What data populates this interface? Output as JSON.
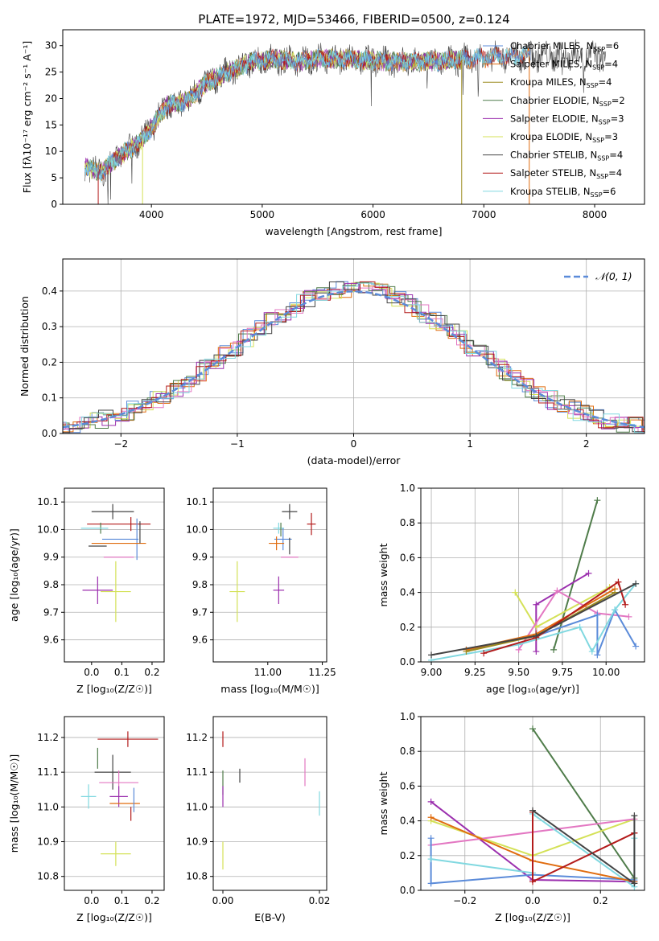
{
  "figure_title": "PLATE=1972, MJD=53466, FIBERID=0500, z=0.124",
  "colors": {
    "chabrier_miles": "#5b8bd9",
    "salpeter_miles": "#e06c0f",
    "kroupa_miles": "#9c8a1e",
    "chabrier_elodie": "#4f7c4a",
    "salpeter_elodie": "#9b2fae",
    "kroupa_elodie": "#d4e157",
    "chabrier_stelib": "#444444",
    "salpeter_stelib": "#b31b1b",
    "kroupa_stelib": "#80d8e0",
    "pink": "#e377c2",
    "gaussian": "#5b8bd9"
  },
  "legend_entries": [
    "Chabrier MILES, N_SSP=6",
    "Salpeter MILES, N_SSP=4",
    "Kroupa MILES, N_SSP=4",
    "Chabrier ELODIE, N_SSP=2",
    "Salpeter ELODIE, N_SSP=3",
    "Kroupa ELODIE, N_SSP=3",
    "Chabrier STELIB, N_SSP=4",
    "Salpeter STELIB, N_SSP=4",
    "Kroupa STELIB, N_SSP=6"
  ],
  "chart_data": [
    {
      "type": "line",
      "panel": "spectrum",
      "xlabel": "wavelength [Angstrom, rest frame]",
      "ylabel": "Flux [f_λ 10^-17 erg cm^-2 s^-1 A^-1]",
      "xlim": [
        3200,
        8450
      ],
      "ylim": [
        0,
        33
      ],
      "xticks": [
        4000,
        5000,
        6000,
        7000,
        8000
      ],
      "yticks": [
        0,
        5,
        10,
        15,
        20,
        25,
        30
      ],
      "trend_wavelength": [
        3400,
        3550,
        3700,
        3850,
        3950,
        4050,
        4150,
        4250,
        4350,
        4500,
        4700,
        4900,
        5100,
        5300,
        5500,
        5800,
        6100,
        6300,
        6600,
        6900,
        7200,
        7500
      ],
      "trend_flux": [
        7,
        6,
        9,
        11,
        13,
        16,
        19,
        19,
        20,
        23,
        25,
        27,
        27.5,
        27,
        27.5,
        27.5,
        27,
        27,
        27,
        27.5,
        28,
        28
      ],
      "series": [
        "Chabrier MILES",
        "Salpeter MILES",
        "Kroupa MILES",
        "Chabrier ELODIE",
        "Salpeter ELODIE",
        "Kroupa ELODIE",
        "Chabrier STELIB",
        "Salpeter STELIB",
        "Kroupa STELIB"
      ]
    },
    {
      "type": "histogram",
      "panel": "residuals",
      "xlabel": "(data-model)/error",
      "ylabel": "Normed distribution",
      "xlim": [
        -2.5,
        2.5
      ],
      "ylim": [
        0,
        0.49
      ],
      "xticks": [
        -2,
        -1,
        0,
        1,
        2
      ],
      "yticks": [
        0.0,
        0.1,
        0.2,
        0.3,
        0.4
      ],
      "legend": "N(0,1)",
      "grid": true
    },
    {
      "type": "scatter",
      "panel": "Z-age",
      "xlabel": "Z [log10(Z/Z_sun)]",
      "ylabel": "age [log10(age/yr)]",
      "xlim": [
        -0.09,
        0.24
      ],
      "ylim": [
        9.52,
        10.15
      ],
      "xticks": [
        0.0,
        0.1,
        0.2
      ],
      "yticks": [
        9.6,
        9.7,
        9.8,
        9.9,
        10.0,
        10.1
      ],
      "points": [
        {
          "x": 0.07,
          "y": 10.065,
          "xerr": 0.14,
          "yerr": 0.055,
          "c": "chabrier_stelib"
        },
        {
          "x": 0.09,
          "y": 10.02,
          "xerr": 0.21,
          "yerr": 0.0,
          "c": "salpeter_stelib"
        },
        {
          "x": 0.13,
          "y": 10.02,
          "xerr": 0.0,
          "yerr": 0.05,
          "c": "salpeter_stelib"
        },
        {
          "x": 0.03,
          "y": 10.005,
          "xerr": 0.0,
          "yerr": 0.04,
          "c": "chabrier_elodie"
        },
        {
          "x": 0.01,
          "y": 10.005,
          "xerr": 0.09,
          "yerr": 0.0,
          "c": "kroupa_stelib"
        },
        {
          "x": 0.095,
          "y": 9.965,
          "xerr": 0.12,
          "yerr": 0.0,
          "c": "chabrier_miles"
        },
        {
          "x": 0.15,
          "y": 9.965,
          "xerr": 0.0,
          "yerr": 0.15,
          "c": "chabrier_miles"
        },
        {
          "x": 0.09,
          "y": 9.95,
          "xerr": 0.18,
          "yerr": 0.0,
          "c": "salpeter_miles"
        },
        {
          "x": 0.02,
          "y": 9.94,
          "xerr": 0.06,
          "yerr": 0.0,
          "c": "chabrier_stelib"
        },
        {
          "x": 0.16,
          "y": 9.99,
          "xerr": 0.0,
          "yerr": 0.08,
          "c": "chabrier_stelib"
        },
        {
          "x": 0.09,
          "y": 9.9,
          "xerr": 0.1,
          "yerr": 0.0,
          "c": "pink"
        },
        {
          "x": 0.02,
          "y": 9.78,
          "xerr": 0.1,
          "yerr": 0.1,
          "c": "salpeter_elodie"
        },
        {
          "x": 0.08,
          "y": 9.775,
          "xerr": 0.1,
          "yerr": 0.22,
          "c": "kroupa_elodie"
        }
      ]
    },
    {
      "type": "scatter",
      "panel": "mass-age",
      "xlabel": "mass [log10(M/M_sun)]",
      "ylabel": "",
      "xlim": [
        10.75,
        11.27
      ],
      "ylim": [
        9.52,
        10.15
      ],
      "xticks": [
        11.0,
        11.25
      ],
      "yticks": [
        9.6,
        9.7,
        9.8,
        9.9,
        10.0,
        10.1
      ],
      "points": [
        {
          "x": 11.1,
          "y": 10.065,
          "xerr": 0.07,
          "yerr": 0.055,
          "c": "chabrier_stelib"
        },
        {
          "x": 11.2,
          "y": 10.02,
          "xerr": 0.04,
          "yerr": 0.08,
          "c": "salpeter_stelib"
        },
        {
          "x": 11.05,
          "y": 10.005,
          "xerr": 0.05,
          "yerr": 0.04,
          "c": "kroupa_stelib"
        },
        {
          "x": 11.07,
          "y": 9.965,
          "xerr": 0.08,
          "yerr": 0.08,
          "c": "chabrier_miles"
        },
        {
          "x": 11.04,
          "y": 9.95,
          "xerr": 0.07,
          "yerr": 0.05,
          "c": "salpeter_miles"
        },
        {
          "x": 11.1,
          "y": 9.94,
          "xerr": 0.0,
          "yerr": 0.06,
          "c": "chabrier_stelib"
        },
        {
          "x": 11.1,
          "y": 9.9,
          "xerr": 0.08,
          "yerr": 0.0,
          "c": "pink"
        },
        {
          "x": 11.05,
          "y": 9.78,
          "xerr": 0.05,
          "yerr": 0.1,
          "c": "salpeter_elodie"
        },
        {
          "x": 10.86,
          "y": 9.775,
          "xerr": 0.07,
          "yerr": 0.22,
          "c": "kroupa_elodie"
        },
        {
          "x": 11.06,
          "y": 10.0,
          "xerr": 0.0,
          "yerr": 0.05,
          "c": "chabrier_elodie"
        }
      ]
    },
    {
      "type": "line",
      "panel": "age-weight",
      "xlabel": "age [log10(age/yr)]",
      "ylabel": "mass weight",
      "xlim": [
        8.94,
        10.22
      ],
      "ylim": [
        0,
        1.0
      ],
      "xticks": [
        9.0,
        9.25,
        9.5,
        9.75,
        10.0
      ],
      "yticks": [
        0.0,
        0.2,
        0.4,
        0.6,
        0.8,
        1.0
      ],
      "grid": true,
      "series": [
        {
          "c": "chabrier_elodie",
          "x": [
            9.7,
            9.95
          ],
          "y": [
            0.07,
            0.93
          ]
        },
        {
          "c": "salpeter_elodie",
          "x": [
            9.6,
            9.6,
            9.9
          ],
          "y": [
            0.06,
            0.33,
            0.51
          ]
        },
        {
          "c": "kroupa_elodie",
          "x": [
            9.48,
            9.6,
            10.02
          ],
          "y": [
            0.4,
            0.2,
            0.43
          ]
        },
        {
          "c": "pink",
          "x": [
            9.5,
            9.72,
            9.95,
            10.13
          ],
          "y": [
            0.07,
            0.41,
            0.28,
            0.26
          ]
        },
        {
          "c": "chabrier_miles",
          "x": [
            9.2,
            9.6,
            9.95,
            9.95,
            10.05,
            10.17
          ],
          "y": [
            0.07,
            0.15,
            0.27,
            0.04,
            0.3,
            0.09
          ]
        },
        {
          "c": "kroupa_stelib",
          "x": [
            9.0,
            9.5,
            9.85,
            9.92,
            10.05,
            10.17
          ],
          "y": [
            0.01,
            0.1,
            0.2,
            0.06,
            0.3,
            0.45
          ]
        },
        {
          "c": "salpeter_miles",
          "x": [
            9.2,
            9.6,
            10.05
          ],
          "y": [
            0.07,
            0.16,
            0.42
          ]
        },
        {
          "c": "kroupa_miles",
          "x": [
            9.2,
            9.6,
            10.05
          ],
          "y": [
            0.06,
            0.15,
            0.4
          ]
        },
        {
          "c": "salpeter_stelib",
          "x": [
            9.3,
            9.6,
            10.07,
            10.11
          ],
          "y": [
            0.05,
            0.14,
            0.46,
            0.33
          ]
        },
        {
          "c": "chabrier_stelib",
          "x": [
            9.0,
            9.6,
            10.17
          ],
          "y": [
            0.04,
            0.15,
            0.45
          ]
        }
      ]
    },
    {
      "type": "scatter",
      "panel": "Z-mass",
      "xlabel": "Z [log10(Z/Z_sun)]",
      "ylabel": "mass [log10(M/M_sun)]",
      "xlim": [
        -0.09,
        0.24
      ],
      "ylim": [
        10.76,
        11.26
      ],
      "xticks": [
        0.0,
        0.1,
        0.2
      ],
      "yticks": [
        10.8,
        10.9,
        11.0,
        11.1,
        11.2
      ],
      "points": [
        {
          "x": 0.12,
          "y": 11.195,
          "xerr": 0.2,
          "yerr": 0.045,
          "c": "salpeter_stelib"
        },
        {
          "x": 0.07,
          "y": 11.1,
          "xerr": 0.12,
          "yerr": 0.1,
          "c": "chabrier_stelib"
        },
        {
          "x": 0.09,
          "y": 11.07,
          "xerr": 0.13,
          "yerr": 0.07,
          "c": "pink"
        },
        {
          "x": 0.02,
          "y": 11.14,
          "xerr": 0.0,
          "yerr": 0.06,
          "c": "chabrier_elodie"
        },
        {
          "x": -0.01,
          "y": 11.03,
          "xerr": 0.05,
          "yerr": 0.07,
          "c": "kroupa_stelib"
        },
        {
          "x": 0.09,
          "y": 11.03,
          "xerr": 0.06,
          "yerr": 0.06,
          "c": "salpeter_elodie"
        },
        {
          "x": 0.11,
          "y": 11.01,
          "xerr": 0.1,
          "yerr": 0.0,
          "c": "salpeter_miles"
        },
        {
          "x": 0.14,
          "y": 11.02,
          "xerr": 0.0,
          "yerr": 0.07,
          "c": "chabrier_miles"
        },
        {
          "x": 0.13,
          "y": 10.98,
          "xerr": 0.0,
          "yerr": 0.04,
          "c": "salpeter_stelib"
        },
        {
          "x": 0.08,
          "y": 10.865,
          "xerr": 0.1,
          "yerr": 0.07,
          "c": "kroupa_elodie"
        }
      ]
    },
    {
      "type": "scatter",
      "panel": "EBV-mass",
      "xlabel": "E(B-V)",
      "ylabel": "",
      "xlim": [
        -0.002,
        0.0215
      ],
      "ylim": [
        10.76,
        11.26
      ],
      "xticks": [
        0.0,
        0.02
      ],
      "yticks": [
        10.8,
        10.9,
        11.0,
        11.1,
        11.2
      ],
      "points": [
        {
          "x": 0.0,
          "y": 11.195,
          "xerr": 0.0,
          "yerr": 0.045,
          "c": "salpeter_stelib"
        },
        {
          "x": 0.0,
          "y": 11.07,
          "xerr": 0.0,
          "yerr": 0.07,
          "c": "chabrier_elodie"
        },
        {
          "x": 0.0,
          "y": 11.03,
          "xerr": 0.0,
          "yerr": 0.06,
          "c": "salpeter_elodie"
        },
        {
          "x": 0.0,
          "y": 10.86,
          "xerr": 0.0,
          "yerr": 0.08,
          "c": "kroupa_elodie"
        },
        {
          "x": 0.0035,
          "y": 11.09,
          "xerr": 0.0,
          "yerr": 0.04,
          "c": "chabrier_stelib"
        },
        {
          "x": 0.017,
          "y": 11.1,
          "xerr": 0.0,
          "yerr": 0.08,
          "c": "pink"
        },
        {
          "x": 0.02,
          "y": 11.01,
          "xerr": 0.0,
          "yerr": 0.07,
          "c": "kroupa_stelib"
        }
      ]
    },
    {
      "type": "line",
      "panel": "Z-weight",
      "xlabel": "Z [log10(Z/Z_sun)]",
      "ylabel": "mass weight",
      "xlim": [
        -0.33,
        0.33
      ],
      "ylim": [
        0,
        1.0
      ],
      "xticks": [
        -0.2,
        0.0,
        0.2
      ],
      "yticks": [
        0.0,
        0.2,
        0.4,
        0.6,
        0.8,
        1.0
      ],
      "grid": true,
      "series": [
        {
          "c": "chabrier_elodie",
          "x": [
            0.0,
            0.3
          ],
          "y": [
            0.93,
            0.07
          ]
        },
        {
          "c": "salpeter_elodie",
          "x": [
            -0.3,
            0.0,
            0.3
          ],
          "y": [
            0.51,
            0.06,
            0.05
          ]
        },
        {
          "c": "kroupa_elodie",
          "x": [
            -0.3,
            0.0,
            0.3
          ],
          "y": [
            0.4,
            0.2,
            0.41
          ]
        },
        {
          "c": "pink",
          "x": [
            -0.3,
            0.3
          ],
          "y": [
            0.26,
            0.41
          ]
        },
        {
          "c": "chabrier_miles",
          "x": [
            -0.3,
            -0.3,
            0.0,
            0.3
          ],
          "y": [
            0.3,
            0.04,
            0.09,
            0.06
          ]
        },
        {
          "c": "kroupa_stelib",
          "x": [
            -0.3,
            0.0,
            0.0,
            0.3,
            0.3
          ],
          "y": [
            0.18,
            0.1,
            0.44,
            0.02,
            0.3
          ]
        },
        {
          "c": "salpeter_miles",
          "x": [
            -0.3,
            0.0,
            0.3
          ],
          "y": [
            0.42,
            0.17,
            0.05
          ]
        },
        {
          "c": "salpeter_stelib",
          "x": [
            0.0,
            0.0,
            0.3,
            0.3
          ],
          "y": [
            0.45,
            0.05,
            0.33,
            0.33
          ]
        },
        {
          "c": "chabrier_stelib",
          "x": [
            0.0,
            0.3,
            0.3
          ],
          "y": [
            0.46,
            0.04,
            0.43
          ]
        }
      ]
    }
  ]
}
